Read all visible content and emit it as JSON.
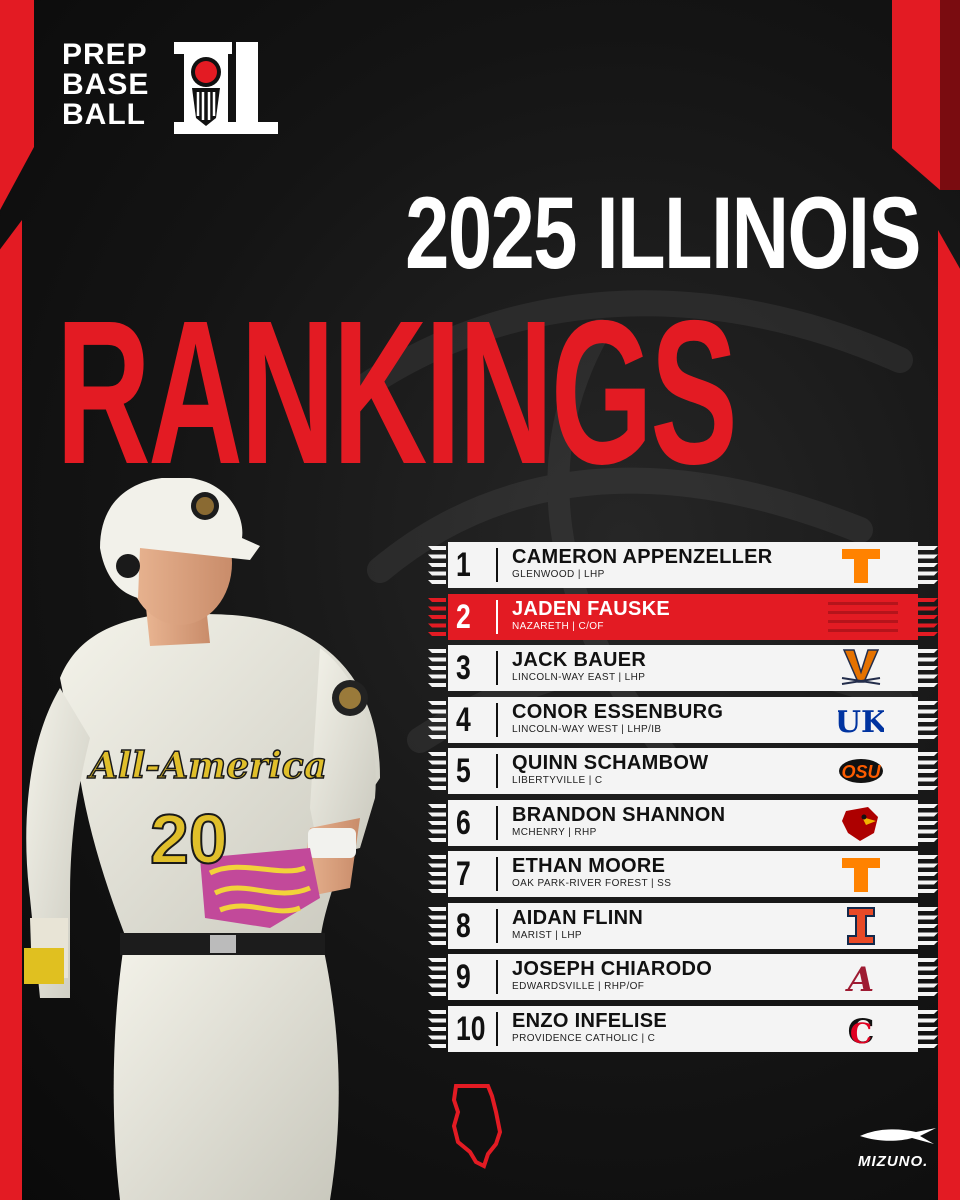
{
  "brand": {
    "logo_lines": [
      "PREP",
      "BASE",
      "BALL"
    ],
    "logo_letters": "IL",
    "accent_color": "#e31b23",
    "icon": "baseball-helmet-logo-icon"
  },
  "header": {
    "year_line": "2025 ILLINOIS",
    "title": "RANKINGS"
  },
  "player": {
    "jersey_script": "All-America",
    "jersey_number": "20"
  },
  "rankings": [
    {
      "rank": "1",
      "name": "CAMERON APPENZELLER",
      "info": "GLENWOOD | LHP",
      "school_logo": "T",
      "logo_color": "#ff8200",
      "icon": "tennessee-logo-icon"
    },
    {
      "rank": "2",
      "name": "JADEN FAUSKE",
      "info": "NAZARETH | C/OF",
      "school_logo": "",
      "logo_color": "",
      "icon": ""
    },
    {
      "rank": "3",
      "name": "JACK BAUER",
      "info": "LINCOLN-WAY EAST | LHP",
      "school_logo": "V",
      "logo_color": "#e57200",
      "icon": "virginia-logo-icon"
    },
    {
      "rank": "4",
      "name": "CONOR ESSENBURG",
      "info": "LINCOLN-WAY WEST |  LHP/IB",
      "school_logo": "UK",
      "logo_color": "#0033a0",
      "icon": "kentucky-logo-icon"
    },
    {
      "rank": "5",
      "name": "QUINN SCHAMBOW",
      "info": "LIBERTYVILLE | C",
      "school_logo": "OSU",
      "logo_color": "#fe5c00",
      "icon": "oklahoma-state-logo-icon"
    },
    {
      "rank": "6",
      "name": "BRANDON SHANNON",
      "info": "MCHENRY | RHP",
      "school_logo": "",
      "logo_color": "#ad0000",
      "icon": "louisville-cardinal-logo-icon"
    },
    {
      "rank": "7",
      "name": "ETHAN MOORE",
      "info": "OAK PARK-RIVER FOREST | SS",
      "school_logo": "T",
      "logo_color": "#ff8200",
      "icon": "tennessee-logo-icon"
    },
    {
      "rank": "8",
      "name": "AIDAN FLINN",
      "info": "MARIST | LHP",
      "school_logo": "I",
      "logo_color": "#e84a27",
      "icon": "illinois-logo-icon"
    },
    {
      "rank": "9",
      "name": "JOSEPH CHIARODO",
      "info": "EDWARDSVILLE | RHP/OF",
      "school_logo": "A",
      "logo_color": "#9e1b32",
      "icon": "alabama-logo-icon"
    },
    {
      "rank": "10",
      "name": "ENZO INFELISE",
      "info": "PROVIDENCE CATHOLIC | C",
      "school_logo": "C",
      "logo_color": "#e00122",
      "icon": "cincinnati-logo-icon"
    }
  ],
  "footer": {
    "state_icon": "illinois-state-outline-icon",
    "sponsor": "MIZUNO.",
    "sponsor_icon": "mizuno-runbird-icon"
  }
}
